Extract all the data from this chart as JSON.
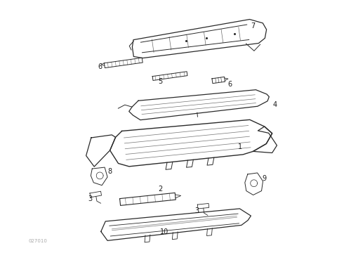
{
  "bg_color": "#ffffff",
  "line_color": "#2a2a2a",
  "label_color": "#1a1a1a",
  "watermark": "027010",
  "fig_w": 4.9,
  "fig_h": 3.6,
  "dpi": 100
}
